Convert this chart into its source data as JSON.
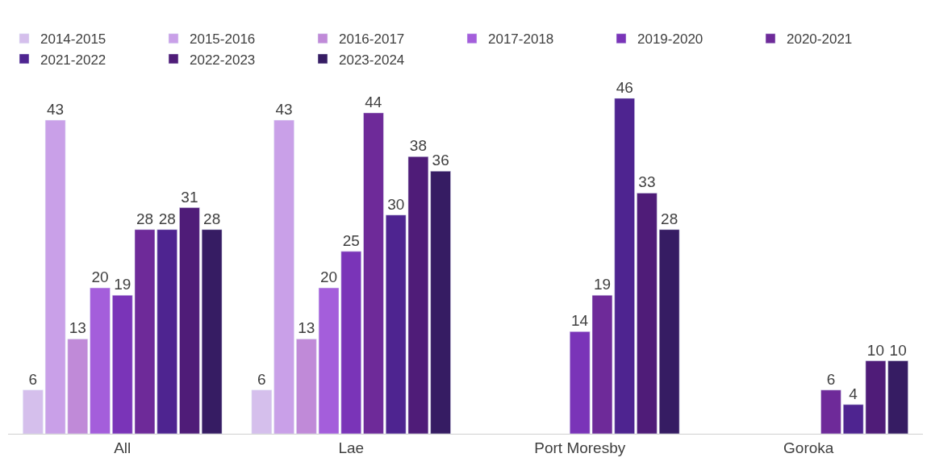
{
  "chart_data": {
    "type": "bar",
    "categories": [
      "All",
      "Lae",
      "Port Moresby",
      "Goroka"
    ],
    "series": [
      {
        "name": "2014-2015",
        "color": "#d5bfec",
        "values": [
          6,
          6,
          null,
          null
        ]
      },
      {
        "name": "2015-2016",
        "color": "#c9a0e8",
        "values": [
          43,
          43,
          null,
          null
        ]
      },
      {
        "name": "2016-2017",
        "color": "#c08ad8",
        "values": [
          13,
          13,
          null,
          null
        ]
      },
      {
        "name": "2017-2018",
        "color": "#a45edb",
        "values": [
          20,
          20,
          null,
          null
        ]
      },
      {
        "name": "2019-2020",
        "color": "#7a34b8",
        "values": [
          19,
          25,
          14,
          null
        ]
      },
      {
        "name": "2020-2021",
        "color": "#6e2a99",
        "values": [
          28,
          44,
          19,
          6
        ]
      },
      {
        "name": "2021-2022",
        "color": "#4e2490",
        "values": [
          28,
          30,
          46,
          4
        ]
      },
      {
        "name": "2022-2023",
        "color": "#4f1c78",
        "values": [
          31,
          38,
          33,
          10
        ]
      },
      {
        "name": "2023-2024",
        "color": "#361c63",
        "values": [
          28,
          36,
          28,
          10
        ]
      }
    ],
    "tick_labels": "x",
    "data_labels": true,
    "legend": "top left"
  }
}
